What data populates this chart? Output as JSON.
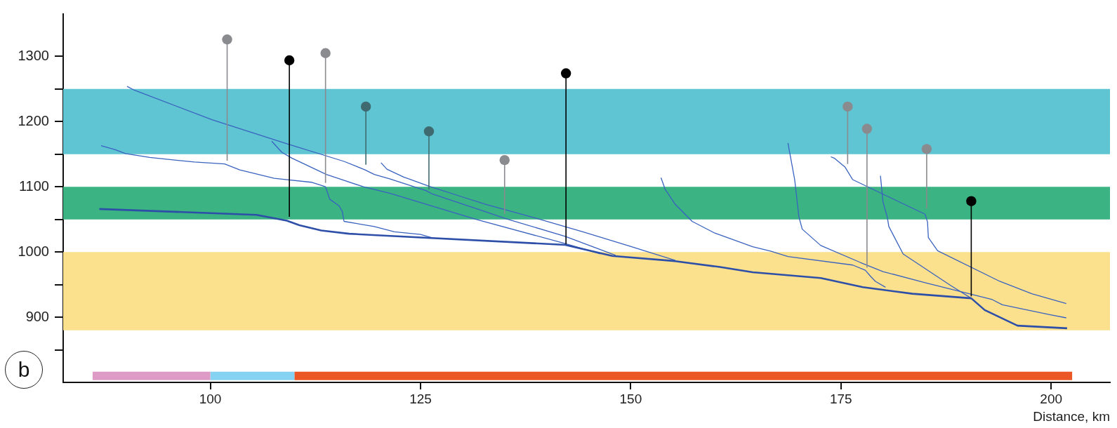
{
  "chart_data": {
    "type": "line",
    "xlabel": "Distance, km",
    "annotations": [
      "b"
    ],
    "xlim": [
      82.5,
      207
    ],
    "xticks": [
      100,
      125,
      150,
      175,
      200
    ],
    "ylim": [
      800,
      1365
    ],
    "yticks": [
      {
        "value": 850,
        "label": null
      },
      900,
      {
        "value": 950,
        "label": null
      },
      1000,
      {
        "value": 1050,
        "label": null
      },
      1100,
      {
        "value": 1150,
        "label": null
      },
      1200,
      {
        "value": 1250,
        "label": null
      },
      1300
    ],
    "grid": false,
    "legend": false,
    "bands": [
      {
        "axis": "y",
        "from": 1150,
        "to": 1250,
        "color": "#5fc5d3"
      },
      {
        "axis": "y",
        "from": 1050,
        "to": 1100,
        "color": "#3bb383"
      },
      {
        "axis": "y",
        "from": 880,
        "to": 1000,
        "color": "#fbe08e"
      }
    ],
    "series": [
      {
        "type": "line",
        "color": "#2d4fa8",
        "marker": "none",
        "x": [
          86.8,
          105.5,
          109.1,
          110.6,
          113.2,
          116.5,
          121,
          142.2,
          147.8,
          155.3,
          160.6,
          164.5,
          172.6,
          177.6,
          183.5,
          190.5,
          192.1,
          196,
          201.9
        ],
        "values": [
          1066,
          1057,
          1048,
          1041,
          1033,
          1028,
          1025,
          1011,
          994,
          986,
          977,
          969,
          960,
          946,
          936,
          929,
          911,
          887,
          883
        ]
      },
      {
        "type": "line",
        "color": "#3a62bf",
        "marker": "none",
        "x": [
          90.1,
          91,
          100.2,
          109.1,
          115.9,
          118.4,
          119.5,
          121.4,
          125.7,
          126.4,
          132.2,
          135.2,
          142.2,
          148.2
        ],
        "values": [
          1254,
          1248,
          1203,
          1166,
          1139,
          1126,
          1119,
          1112,
          1094,
          1089,
          1064,
          1051,
          1024,
          995
        ]
      },
      {
        "type": "line",
        "color": "#3a62bf",
        "marker": "none",
        "x": [
          87,
          88.7,
          89.9,
          92.8,
          98.1,
          101.7,
          103.5,
          107.6,
          112,
          113.7,
          114.2,
          115.3,
          115.7,
          115.9,
          119.5,
          121.9,
          125,
          126.3
        ],
        "values": [
          1163,
          1157,
          1151,
          1145,
          1138,
          1135,
          1126,
          1113,
          1107,
          1100,
          1081,
          1071,
          1062,
          1047,
          1039,
          1031,
          1027,
          1022
        ]
      },
      {
        "type": "line",
        "color": "#3a62bf",
        "marker": "none",
        "x": [
          107.3,
          108.5,
          109.7,
          113.8,
          118.2,
          121.4,
          131.6,
          142.2,
          146.4
        ],
        "values": [
          1170,
          1153,
          1144,
          1119,
          1100,
          1090,
          1050,
          1013,
          997
        ]
      },
      {
        "type": "line",
        "color": "#3a62bf",
        "marker": "none",
        "x": [
          120.3,
          121,
          123,
          126,
          129.6,
          132.8,
          138.7,
          144.3,
          149.9,
          155.3
        ],
        "values": [
          1137,
          1127,
          1115,
          1101,
          1086,
          1073,
          1052,
          1031,
          1009,
          987
        ]
      },
      {
        "type": "line",
        "color": "#3a62bf",
        "marker": "none",
        "x": [
          153.6,
          154.1,
          155.3,
          157.3,
          160,
          164.5,
          166.7,
          168.7,
          176.4,
          177.9,
          178.5,
          179.1,
          180.3
        ],
        "values": [
          1114,
          1096,
          1073,
          1047,
          1029,
          1008,
          1001,
          993,
          980,
          972,
          963,
          955,
          946
        ]
      },
      {
        "type": "line",
        "color": "#3a62bf",
        "marker": "none",
        "x": [
          168.7,
          169.5,
          170,
          170.4,
          172.6,
          177.3,
          180,
          185,
          193,
          194.2,
          199.8,
          201.8
        ],
        "values": [
          1167,
          1111,
          1054,
          1035,
          1010,
          984,
          970,
          953,
          927,
          919,
          904,
          899
        ]
      },
      {
        "type": "line",
        "color": "#3a62bf",
        "marker": "none",
        "x": [
          173.8,
          174.2,
          175.5,
          176.4,
          181.1,
          185,
          185.3,
          185.4,
          186.5,
          193.9,
          197.7,
          201.8
        ],
        "values": [
          1146,
          1144,
          1130,
          1111,
          1082,
          1058,
          1046,
          1022,
          1002,
          955,
          936,
          921
        ]
      },
      {
        "type": "line",
        "color": "#3a62bf",
        "marker": "none",
        "x": [
          179.7,
          180,
          180.5,
          180.7,
          182.4,
          188,
          190.5
        ],
        "values": [
          1117,
          1077,
          1054,
          1039,
          997,
          949,
          929
        ]
      },
      {
        "color": "#de9bc6",
        "marker": "none",
        "x": [
          86,
          100
        ],
        "values": [
          810,
          810
        ]
      },
      {
        "color": "#86d2f3",
        "marker": "none",
        "x": [
          100,
          110
        ],
        "values": [
          810,
          810
        ]
      },
      {
        "color": "#ec5726",
        "marker": "none",
        "x": [
          110,
          202.5
        ],
        "values": [
          810,
          810
        ]
      },
      {
        "type": "scatter",
        "color": "#8a8b8f",
        "marker": "circle",
        "x": [
          102,
          113.7,
          135,
          175.8,
          178.1,
          185.2
        ],
        "values": [
          1326,
          1305,
          1141,
          1223,
          1189,
          1158
        ],
        "errors": [
          [
            1140,
            1326
          ],
          [
            1106,
            1305
          ],
          [
            1058,
            1141
          ],
          [
            1135,
            1223
          ],
          [
            976,
            1189
          ],
          [
            1067,
            1158
          ]
        ]
      },
      {
        "type": "scatter",
        "color": "#3f6b70",
        "marker": "circle",
        "x": [
          118.5,
          126
        ],
        "values": [
          1223,
          1185
        ],
        "errors": [
          [
            1134,
            1223
          ],
          [
            1096,
            1185
          ]
        ]
      },
      {
        "type": "scatter",
        "color": "#000000",
        "marker": "circle",
        "x": [
          109.4,
          142.3,
          190.5
        ],
        "values": [
          1294,
          1274,
          1078
        ],
        "errors": [
          [
            1054,
            1294
          ],
          [
            1012,
            1274
          ],
          [
            932,
            1078
          ]
        ]
      }
    ]
  }
}
